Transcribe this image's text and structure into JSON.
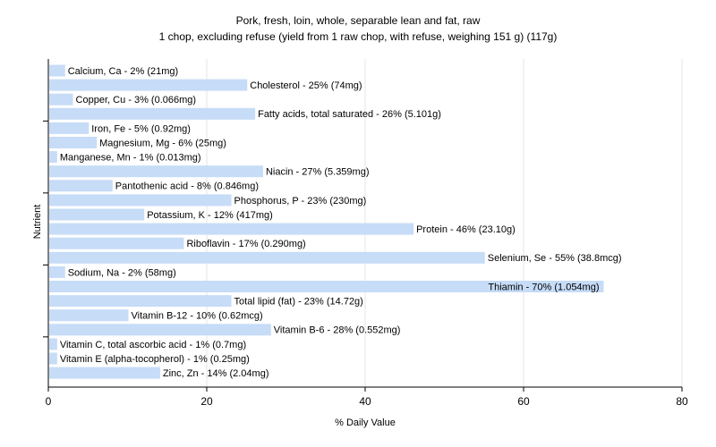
{
  "chart_data": {
    "type": "bar",
    "orientation": "horizontal",
    "title": "Pork, fresh, loin, whole, separable lean and fat, raw",
    "subtitle": "1 chop, excluding refuse (yield from 1 raw chop, with refuse, weighing 151 g) (117g)",
    "xlabel": "% Daily Value",
    "ylabel": "Nutrient",
    "xlim": [
      0,
      80
    ],
    "xticks": [
      0,
      20,
      40,
      60,
      80
    ],
    "grid": true,
    "bar_color": "#c6dcf7",
    "categories": [
      "Calcium, Ca - 2% (21mg)",
      "Cholesterol - 25% (74mg)",
      "Copper, Cu - 3% (0.066mg)",
      "Fatty acids, total saturated - 26% (5.101g)",
      "Iron, Fe - 5% (0.92mg)",
      "Magnesium, Mg - 6% (25mg)",
      "Manganese, Mn - 1% (0.013mg)",
      "Niacin - 27% (5.359mg)",
      "Pantothenic acid - 8% (0.846mg)",
      "Phosphorus, P - 23% (230mg)",
      "Potassium, K - 12% (417mg)",
      "Protein - 46% (23.10g)",
      "Riboflavin - 17% (0.290mg)",
      "Selenium, Se - 55% (38.8mcg)",
      "Sodium, Na - 2% (58mg)",
      "Thiamin - 70% (1.054mg)",
      "Total lipid (fat) - 23% (14.72g)",
      "Vitamin B-12 - 10% (0.62mcg)",
      "Vitamin B-6 - 28% (0.552mg)",
      "Vitamin C, total ascorbic acid - 1% (0.7mg)",
      "Vitamin E (alpha-tocopherol) - 1% (0.25mg)",
      "Zinc, Zn - 14% (2.04mg)"
    ],
    "values": [
      2,
      25,
      3,
      26,
      5,
      6,
      1,
      27,
      8,
      23,
      12,
      46,
      17,
      55,
      2,
      70,
      23,
      10,
      28,
      1,
      1,
      14
    ]
  }
}
